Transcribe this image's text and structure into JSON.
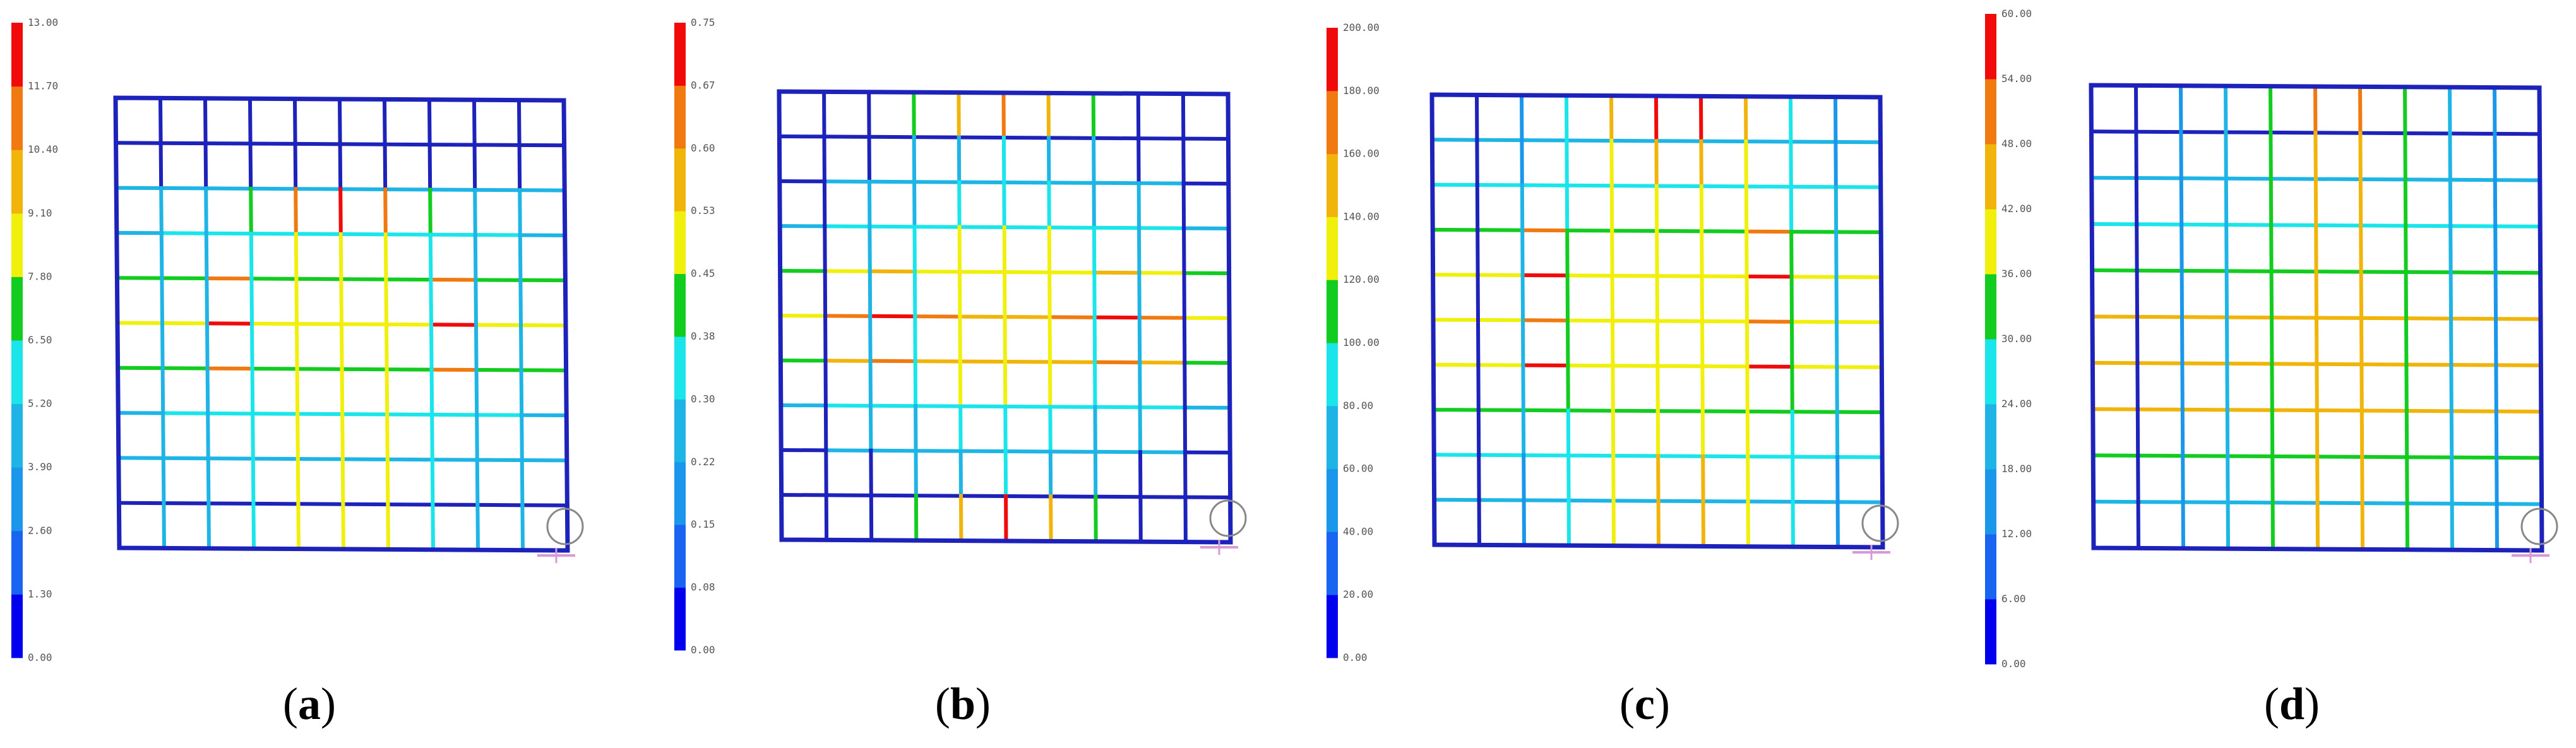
{
  "colors": {
    "scale": [
      "#0000ee",
      "#1a64f2",
      "#1a96ea",
      "#1fb4e6",
      "#19e5ea",
      "#12cc1f",
      "#f0f00c",
      "#f0b40a",
      "#f07a10",
      "#f00a0a"
    ],
    "frame": "#1d22bb",
    "support": "#888888",
    "support_cross": "#d79ad6"
  },
  "panels": [
    {
      "caption": "a",
      "legend_ticks": [
        "13.00",
        "11.70",
        "10.40",
        "9.10",
        "7.80",
        "6.50",
        "5.20",
        "3.90",
        "2.60",
        "1.30",
        "0.00"
      ],
      "grid": {
        "v": [
          [
            0,
            0,
            0,
            0,
            0,
            0,
            0,
            0,
            0,
            0
          ],
          [
            0,
            0,
            0,
            0,
            0,
            0,
            0,
            0,
            0,
            0
          ],
          [
            3,
            3,
            5,
            8,
            9,
            8,
            5,
            3,
            3,
            0
          ],
          [
            3,
            3,
            4,
            6,
            6,
            6,
            4,
            3,
            3,
            0
          ],
          [
            3,
            3,
            4,
            6,
            6,
            6,
            4,
            3,
            3,
            0
          ],
          [
            3,
            3,
            4,
            6,
            6,
            6,
            4,
            3,
            3,
            0
          ],
          [
            3,
            3,
            4,
            6,
            6,
            6,
            4,
            3,
            3,
            0
          ],
          [
            3,
            3,
            4,
            6,
            6,
            6,
            4,
            3,
            3,
            0
          ],
          [
            3,
            3,
            4,
            6,
            6,
            6,
            4,
            3,
            3,
            0
          ],
          [
            3,
            3,
            4,
            6,
            6,
            6,
            4,
            3,
            3,
            0
          ]
        ],
        "h": [
          [
            0,
            0,
            0,
            0,
            0,
            0,
            0,
            0,
            0,
            0
          ],
          [
            0,
            0,
            0,
            0,
            0,
            0,
            0,
            0,
            0,
            0
          ],
          [
            3,
            3,
            3,
            3,
            3,
            3,
            3,
            3,
            3,
            3
          ],
          [
            3,
            4,
            4,
            4,
            4,
            4,
            4,
            4,
            4,
            3
          ],
          [
            5,
            5,
            8,
            5,
            5,
            5,
            5,
            8,
            5,
            5
          ],
          [
            6,
            6,
            9,
            6,
            6,
            6,
            6,
            9,
            6,
            6
          ],
          [
            5,
            5,
            8,
            5,
            5,
            5,
            5,
            8,
            5,
            5
          ],
          [
            3,
            4,
            4,
            4,
            4,
            4,
            4,
            4,
            4,
            3
          ],
          [
            3,
            3,
            3,
            3,
            3,
            3,
            3,
            3,
            3,
            3
          ],
          [
            0,
            0,
            0,
            0,
            0,
            0,
            0,
            0,
            0,
            0
          ],
          [
            0,
            0,
            0,
            0,
            0,
            0,
            0,
            0,
            0,
            0
          ]
        ]
      }
    },
    {
      "caption": "b",
      "legend_ticks": [
        "0.75",
        "0.67",
        "0.60",
        "0.53",
        "0.45",
        "0.38",
        "0.30",
        "0.22",
        "0.15",
        "0.08",
        "0.00"
      ],
      "grid": {
        "v": [
          [
            0,
            0,
            5,
            7,
            8,
            7,
            5,
            0,
            0,
            0
          ],
          [
            0,
            0,
            3,
            3,
            4,
            3,
            3,
            0,
            0,
            0
          ],
          [
            0,
            3,
            3,
            4,
            4,
            4,
            3,
            3,
            0,
            0
          ],
          [
            0,
            3,
            4,
            6,
            6,
            6,
            4,
            3,
            0,
            0
          ],
          [
            0,
            3,
            4,
            6,
            6,
            6,
            4,
            3,
            0,
            0
          ],
          [
            0,
            3,
            4,
            6,
            6,
            6,
            4,
            3,
            0,
            0
          ],
          [
            0,
            3,
            4,
            6,
            6,
            6,
            4,
            3,
            0,
            0
          ],
          [
            0,
            3,
            3,
            4,
            4,
            4,
            3,
            3,
            0,
            0
          ],
          [
            0,
            0,
            3,
            3,
            4,
            3,
            3,
            0,
            0,
            0
          ],
          [
            0,
            0,
            5,
            7,
            9,
            7,
            5,
            0,
            0,
            0
          ]
        ],
        "h": [
          [
            0,
            0,
            0,
            0,
            0,
            0,
            0,
            0,
            0,
            0
          ],
          [
            0,
            0,
            0,
            0,
            0,
            0,
            0,
            0,
            0,
            0
          ],
          [
            0,
            3,
            3,
            3,
            3,
            3,
            3,
            3,
            3,
            0
          ],
          [
            3,
            4,
            4,
            4,
            4,
            4,
            4,
            4,
            4,
            3
          ],
          [
            5,
            6,
            7,
            6,
            6,
            6,
            6,
            7,
            6,
            5
          ],
          [
            6,
            8,
            9,
            8,
            7,
            7,
            8,
            9,
            8,
            6
          ],
          [
            5,
            7,
            8,
            7,
            7,
            7,
            7,
            8,
            7,
            5
          ],
          [
            3,
            4,
            4,
            4,
            4,
            4,
            4,
            4,
            4,
            3
          ],
          [
            0,
            3,
            3,
            3,
            3,
            3,
            3,
            3,
            3,
            0
          ],
          [
            0,
            0,
            0,
            0,
            0,
            0,
            0,
            0,
            0,
            0
          ],
          [
            0,
            0,
            0,
            0,
            0,
            0,
            0,
            0,
            0,
            0
          ]
        ]
      }
    },
    {
      "caption": "c",
      "legend_ticks": [
        "200.00",
        "180.00",
        "160.00",
        "140.00",
        "120.00",
        "100.00",
        "80.00",
        "60.00",
        "40.00",
        "20.00",
        "0.00"
      ],
      "grid": {
        "v": [
          [
            0,
            2,
            4,
            7,
            9,
            9,
            7,
            4,
            2,
            0
          ],
          [
            0,
            2,
            4,
            6,
            7,
            7,
            6,
            4,
            2,
            0
          ],
          [
            0,
            3,
            4,
            6,
            6,
            6,
            6,
            4,
            3,
            0
          ],
          [
            0,
            3,
            5,
            6,
            6,
            6,
            6,
            5,
            3,
            0
          ],
          [
            0,
            3,
            5,
            6,
            6,
            6,
            6,
            5,
            3,
            0
          ],
          [
            0,
            3,
            5,
            6,
            6,
            6,
            6,
            5,
            3,
            0
          ],
          [
            0,
            3,
            5,
            6,
            6,
            6,
            6,
            5,
            3,
            0
          ],
          [
            0,
            3,
            4,
            6,
            6,
            6,
            6,
            4,
            3,
            0
          ],
          [
            0,
            2,
            4,
            6,
            7,
            7,
            6,
            4,
            2,
            0
          ],
          [
            0,
            2,
            4,
            6,
            7,
            7,
            6,
            4,
            2,
            0
          ]
        ],
        "h": [
          [
            0,
            0,
            0,
            0,
            0,
            0,
            0,
            0,
            0,
            0
          ],
          [
            3,
            3,
            3,
            3,
            3,
            3,
            3,
            3,
            3,
            3
          ],
          [
            4,
            4,
            4,
            4,
            4,
            4,
            4,
            4,
            4,
            4
          ],
          [
            5,
            5,
            8,
            5,
            5,
            5,
            5,
            8,
            5,
            5
          ],
          [
            6,
            6,
            9,
            6,
            6,
            6,
            6,
            9,
            6,
            6
          ],
          [
            6,
            6,
            8,
            6,
            6,
            6,
            6,
            8,
            6,
            6
          ],
          [
            6,
            6,
            9,
            6,
            6,
            6,
            6,
            9,
            6,
            6
          ],
          [
            5,
            5,
            5,
            5,
            5,
            5,
            5,
            5,
            5,
            5
          ],
          [
            4,
            4,
            4,
            4,
            4,
            4,
            4,
            4,
            4,
            4
          ],
          [
            3,
            3,
            3,
            3,
            3,
            3,
            3,
            3,
            3,
            3
          ],
          [
            0,
            0,
            0,
            0,
            0,
            0,
            0,
            0,
            0,
            0
          ]
        ]
      }
    },
    {
      "caption": "d",
      "legend_ticks": [
        "60.00",
        "54.00",
        "48.00",
        "42.00",
        "36.00",
        "30.00",
        "24.00",
        "18.00",
        "12.00",
        "6.00",
        "0.00"
      ],
      "grid": {
        "v": [
          [
            0,
            2,
            3,
            5,
            8,
            8,
            5,
            3,
            2,
            0
          ],
          [
            0,
            2,
            3,
            5,
            7,
            7,
            5,
            3,
            2,
            0
          ],
          [
            0,
            2,
            3,
            5,
            7,
            7,
            5,
            3,
            2,
            0
          ],
          [
            0,
            2,
            3,
            5,
            7,
            7,
            5,
            3,
            2,
            0
          ],
          [
            0,
            2,
            3,
            5,
            7,
            7,
            5,
            3,
            2,
            0
          ],
          [
            0,
            2,
            3,
            5,
            7,
            7,
            5,
            3,
            2,
            0
          ],
          [
            0,
            2,
            3,
            5,
            7,
            7,
            5,
            3,
            2,
            0
          ],
          [
            0,
            2,
            3,
            5,
            7,
            7,
            5,
            3,
            2,
            0
          ],
          [
            0,
            2,
            3,
            5,
            7,
            7,
            5,
            3,
            2,
            0
          ],
          [
            0,
            2,
            3,
            5,
            7,
            7,
            5,
            3,
            2,
            0
          ]
        ],
        "h": [
          [
            0,
            0,
            0,
            0,
            0,
            0,
            0,
            0,
            0,
            0
          ],
          [
            0,
            0,
            0,
            0,
            0,
            0,
            0,
            0,
            0,
            0
          ],
          [
            3,
            3,
            3,
            3,
            3,
            3,
            3,
            3,
            3,
            3
          ],
          [
            4,
            4,
            4,
            4,
            4,
            4,
            4,
            4,
            4,
            4
          ],
          [
            5,
            5,
            5,
            5,
            5,
            5,
            5,
            5,
            5,
            5
          ],
          [
            7,
            7,
            7,
            7,
            7,
            7,
            7,
            7,
            7,
            7
          ],
          [
            7,
            7,
            7,
            7,
            7,
            7,
            7,
            7,
            7,
            7
          ],
          [
            7,
            7,
            7,
            7,
            7,
            7,
            7,
            7,
            7,
            7
          ],
          [
            5,
            5,
            5,
            5,
            5,
            5,
            5,
            5,
            5,
            5
          ],
          [
            3,
            3,
            3,
            3,
            3,
            3,
            3,
            3,
            3,
            3
          ],
          [
            0,
            0,
            0,
            0,
            0,
            0,
            0,
            0,
            0,
            0
          ]
        ]
      }
    }
  ]
}
